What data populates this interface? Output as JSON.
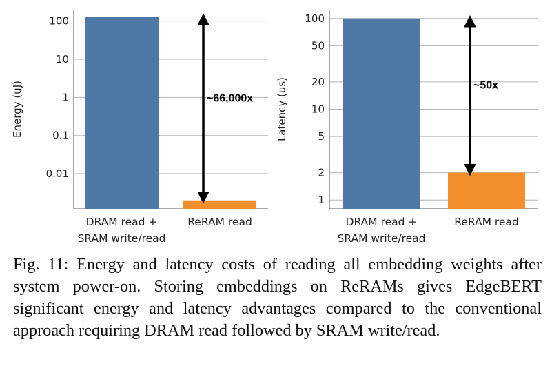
{
  "chart_data": [
    {
      "type": "bar",
      "yscale": "log",
      "ylabel": "Energy (uJ)",
      "categories": [
        "DRAM read + SRAM write/read",
        "ReRAM read"
      ],
      "category_lines": [
        [
          "DRAM read +",
          "SRAM write/read"
        ],
        [
          "ReRAM read"
        ]
      ],
      "values": [
        132,
        0.002
      ],
      "colors": [
        "#4e79a7",
        "#f28e2b"
      ],
      "yticks": [
        0.01,
        0.1,
        1,
        10,
        100
      ],
      "ytick_labels": [
        "0.01",
        "0.1",
        "1",
        "10",
        "100"
      ],
      "ylim": [
        0.0012,
        200
      ],
      "grid": true,
      "annotation": "~66,000x"
    },
    {
      "type": "bar",
      "yscale": "log",
      "ylabel": "Latency (us)",
      "categories": [
        "DRAM read + SRAM write/read",
        "ReRAM read"
      ],
      "category_lines": [
        [
          "DRAM read +",
          "SRAM write/read"
        ],
        [
          "ReRAM read"
        ]
      ],
      "values": [
        100,
        2
      ],
      "colors": [
        "#4e79a7",
        "#f28e2b"
      ],
      "yticks": [
        1,
        2,
        5,
        10,
        20,
        50,
        100
      ],
      "ytick_labels": [
        "1",
        "2",
        "5",
        "10",
        "20",
        "50",
        "100"
      ],
      "ylim": [
        0.8,
        125
      ],
      "grid": true,
      "annotation": "~50x"
    }
  ],
  "caption": "Fig. 11: Energy and latency costs of reading all embedding weights after system power-on. Storing embeddings on ReRAMs gives EdgeBERT significant energy and latency advantages compared to the conventional approach requiring DRAM read followed by SRAM write/read."
}
